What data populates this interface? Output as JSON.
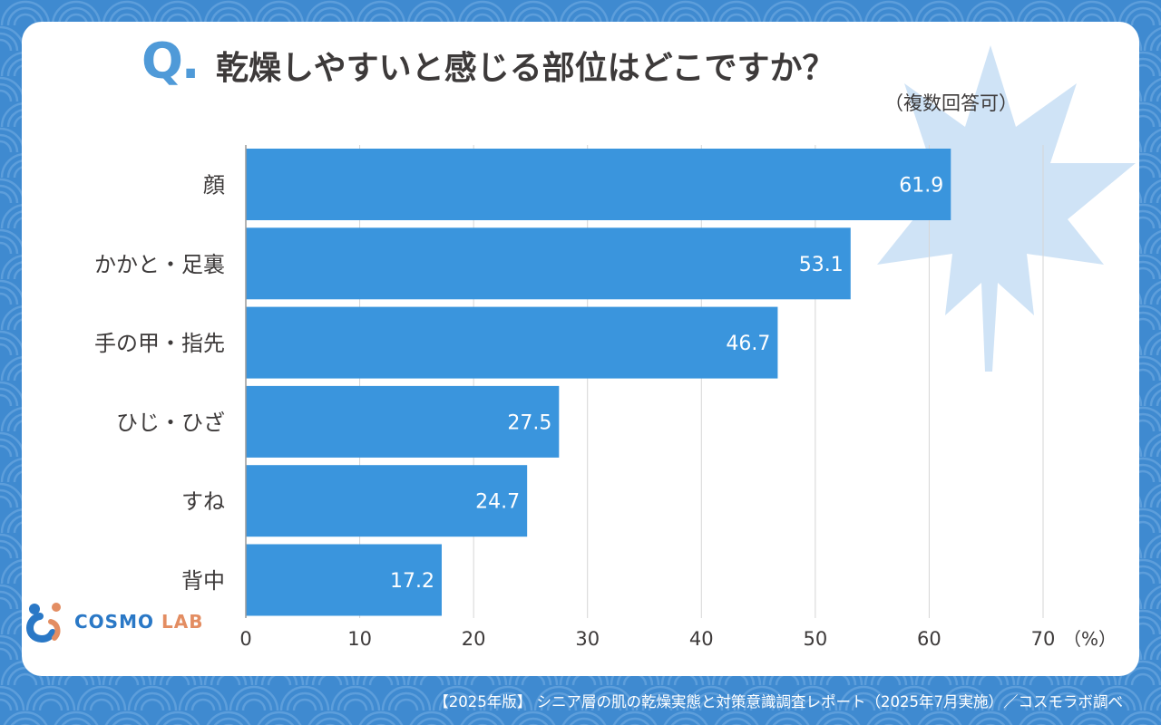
{
  "colors": {
    "background": "#3f8ad0",
    "bar": "#3a95dd",
    "text": "#3d3a3a",
    "accent": "#4f9ad8",
    "leaf": "#cfe3f6",
    "logo_blue": "#2a78c6",
    "logo_orange": "#e38d62"
  },
  "header": {
    "q_mark": "Q.",
    "title": "乾燥しやすいと感じる部位はどこですか？",
    "subtitle": "（複数回答可）"
  },
  "logo": {
    "icon": "cosmo-lab-logo-icon",
    "cosmo": "COSMO",
    "lab": "LAB"
  },
  "footer": {
    "source": "【2025年版】 シニア層の肌の乾燥実態と対策意識調査レポート（2025年7月実施）／コスモラボ調べ"
  },
  "chart_data": {
    "type": "bar",
    "orientation": "horizontal",
    "title": "乾燥しやすいと感じる部位はどこですか？",
    "subtitle": "（複数回答可）",
    "categories": [
      "顔",
      "かかと・足裏",
      "手の甲・指先",
      "ひじ・ひざ",
      "すね",
      "背中"
    ],
    "values": [
      61.9,
      53.1,
      46.7,
      27.5,
      24.7,
      17.2
    ],
    "value_labels": [
      "61.9",
      "53.1",
      "46.7",
      "27.5",
      "24.7",
      "17.2"
    ],
    "x_ticks": [
      0,
      10,
      20,
      30,
      40,
      50,
      60,
      70
    ],
    "x_tick_labels": [
      "0",
      "10",
      "20",
      "30",
      "40",
      "50",
      "60",
      "70"
    ],
    "x_unit": "（%）",
    "xlim": [
      0,
      70
    ],
    "grid": true,
    "legend": "none"
  }
}
